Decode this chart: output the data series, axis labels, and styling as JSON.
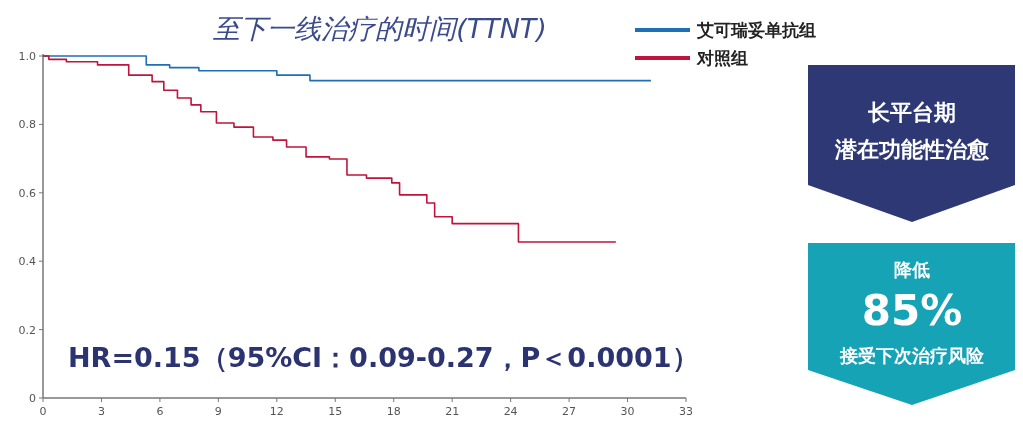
{
  "chart_data": {
    "type": "step",
    "title": "至下一线治疗的时间(TTNT)",
    "series": [
      {
        "name": "艾可瑞妥单抗组",
        "color": "#1f6fb5",
        "x": [
          0,
          3.8,
          5.3,
          6.5,
          8.0,
          11.5,
          12.0,
          13.7,
          31.2
        ],
        "values": [
          1.0,
          1.0,
          0.974,
          0.966,
          0.957,
          0.957,
          0.944,
          0.928,
          0.928
        ]
      },
      {
        "name": "对照组",
        "color": "#c0143c",
        "x": [
          0,
          0.3,
          1.2,
          2.8,
          3.8,
          4.4,
          5.6,
          6.2,
          6.9,
          7.6,
          8.1,
          8.9,
          9.8,
          10.8,
          11.8,
          12.5,
          13.5,
          14.7,
          15.6,
          16.6,
          17.9,
          18.3,
          19.7,
          20.1,
          21.0,
          24.4,
          29.4
        ],
        "values": [
          1.0,
          0.99,
          0.983,
          0.974,
          0.974,
          0.944,
          0.925,
          0.9,
          0.877,
          0.857,
          0.837,
          0.804,
          0.792,
          0.763,
          0.754,
          0.734,
          0.705,
          0.699,
          0.652,
          0.643,
          0.629,
          0.594,
          0.57,
          0.53,
          0.51,
          0.456,
          0.456
        ]
      }
    ],
    "xlim": [
      0,
      33
    ],
    "ylim": [
      0,
      1.0
    ],
    "xticks": [
      0,
      3,
      6,
      9,
      12,
      15,
      18,
      21,
      24,
      27,
      30,
      33
    ],
    "yticks": [
      0,
      0.2,
      0.4,
      0.6,
      0.8,
      {
        "value": 1.0,
        "label": "1.0"
      }
    ],
    "legend": "top right",
    "annotations": [
      "HR=0.15（95%CI：0.09-0.27，P＜0.0001）",
      "长平台期",
      "潜在功能性治愈",
      "降低",
      "85%",
      "接受下次治疗风险"
    ]
  }
}
